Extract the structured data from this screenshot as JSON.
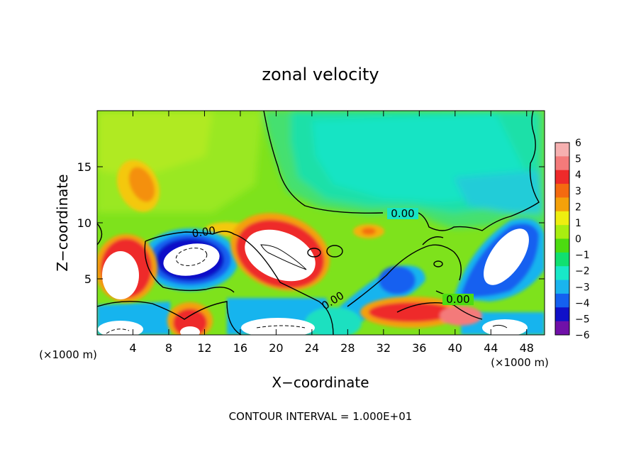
{
  "chart_data": {
    "type": "heatmap",
    "title": "zonal velocity",
    "xlabel": "X−coordinate",
    "ylabel": "Z−coordinate",
    "x_unit_left": "(×1000 m)",
    "x_unit_right": "(×1000 m)",
    "xlim": [
      0,
      50
    ],
    "ylim": [
      0,
      20
    ],
    "x_ticks": [
      4,
      8,
      12,
      16,
      20,
      24,
      28,
      32,
      36,
      40,
      44,
      48
    ],
    "y_ticks": [
      5,
      10,
      15
    ],
    "colorbar": {
      "ticks": [
        6,
        5,
        4,
        3,
        2,
        1,
        0,
        -1,
        -2,
        -3,
        -4,
        -5,
        -6
      ],
      "colors": [
        "#f6b0b0",
        "#f47a7a",
        "#ee2a2a",
        "#f46a10",
        "#f4a10a",
        "#eeee10",
        "#a8ee10",
        "#4cdc10",
        "#10e070",
        "#18e8c8",
        "#1ab4ee",
        "#1460f0",
        "#1010c8",
        "#7010a8"
      ]
    },
    "contour_labels": [
      "0.00",
      "0.00",
      "0.00",
      "0.00"
    ],
    "background_color": "#7ee21c",
    "cores": [
      {
        "x": 11,
        "z": 7.0,
        "sign": "negative",
        "peak": -6
      },
      {
        "x": 19,
        "z": 7.0,
        "sign": "positive",
        "peak": 6
      },
      {
        "x": 3.5,
        "z": 6.0,
        "sign": "positive",
        "peak": 6
      },
      {
        "x": 45.5,
        "z": 7.5,
        "sign": "negative",
        "peak": -6
      },
      {
        "x": 20,
        "z": 1.0,
        "sign": "negative",
        "peak": -6
      },
      {
        "x": 2.5,
        "z": 0.8,
        "sign": "negative",
        "peak": -6
      },
      {
        "x": 45.5,
        "z": 1.0,
        "sign": "negative",
        "peak": -6
      },
      {
        "x": 11,
        "z": 1.5,
        "sign": "positive",
        "peak": 5
      },
      {
        "x": 34,
        "z": 1.5,
        "sign": "positive",
        "peak": 5
      },
      {
        "x": 33,
        "z": 5.0,
        "sign": "negative",
        "peak": -4
      },
      {
        "x": 36,
        "z": 16,
        "sign": "negative",
        "peak": -2
      },
      {
        "x": 5,
        "z": 13,
        "sign": "positive",
        "peak": 3
      },
      {
        "x": 30,
        "z": 9.5,
        "sign": "positive",
        "peak": 3
      }
    ],
    "footer": "CONTOUR INTERVAL = 1.000E+01"
  }
}
